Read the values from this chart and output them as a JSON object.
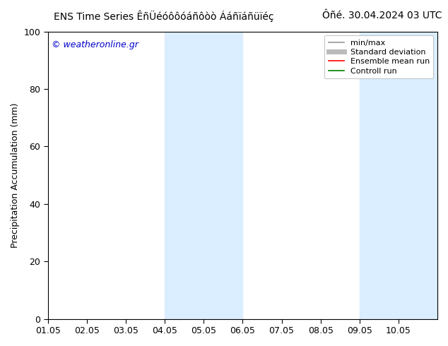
{
  "title_left": "ENS Time Series ÊñÜéóôôóáñôòò Ááñïáñüïéç",
  "title_right": "Ôñé. 30.04.2024 03 UTC",
  "ylabel": "Precipitation Accumulation (mm)",
  "watermark": "© weatheronline.gr",
  "ylim": [
    0,
    100
  ],
  "xlim": [
    0,
    10
  ],
  "xtick_positions": [
    0,
    1,
    2,
    3,
    4,
    5,
    6,
    7,
    8,
    9
  ],
  "xtick_labels": [
    "01.05",
    "02.05",
    "03.05",
    "04.05",
    "05.05",
    "06.05",
    "07.05",
    "08.05",
    "09.05",
    "10.05"
  ],
  "ytick_positions": [
    0,
    20,
    40,
    60,
    80,
    100
  ],
  "ytick_labels": [
    "0",
    "20",
    "40",
    "60",
    "80",
    "100"
  ],
  "shaded_regions": [
    {
      "x_start": 3.0,
      "x_end": 5.0,
      "color": "#daeeff"
    },
    {
      "x_start": 8.0,
      "x_end": 10.0,
      "color": "#daeeff"
    }
  ],
  "legend_entries": [
    {
      "label": "min/max",
      "color": "#999999",
      "lw": 1.2
    },
    {
      "label": "Standard deviation",
      "color": "#bbbbbb",
      "lw": 5
    },
    {
      "label": "Ensemble mean run",
      "color": "#ff0000",
      "lw": 1.2
    },
    {
      "label": "Controll run",
      "color": "#008000",
      "lw": 1.2
    }
  ],
  "background_color": "#ffffff",
  "title_fontsize": 10,
  "label_fontsize": 9,
  "tick_fontsize": 9,
  "watermark_color": "#0000cc",
  "watermark_fontsize": 9
}
